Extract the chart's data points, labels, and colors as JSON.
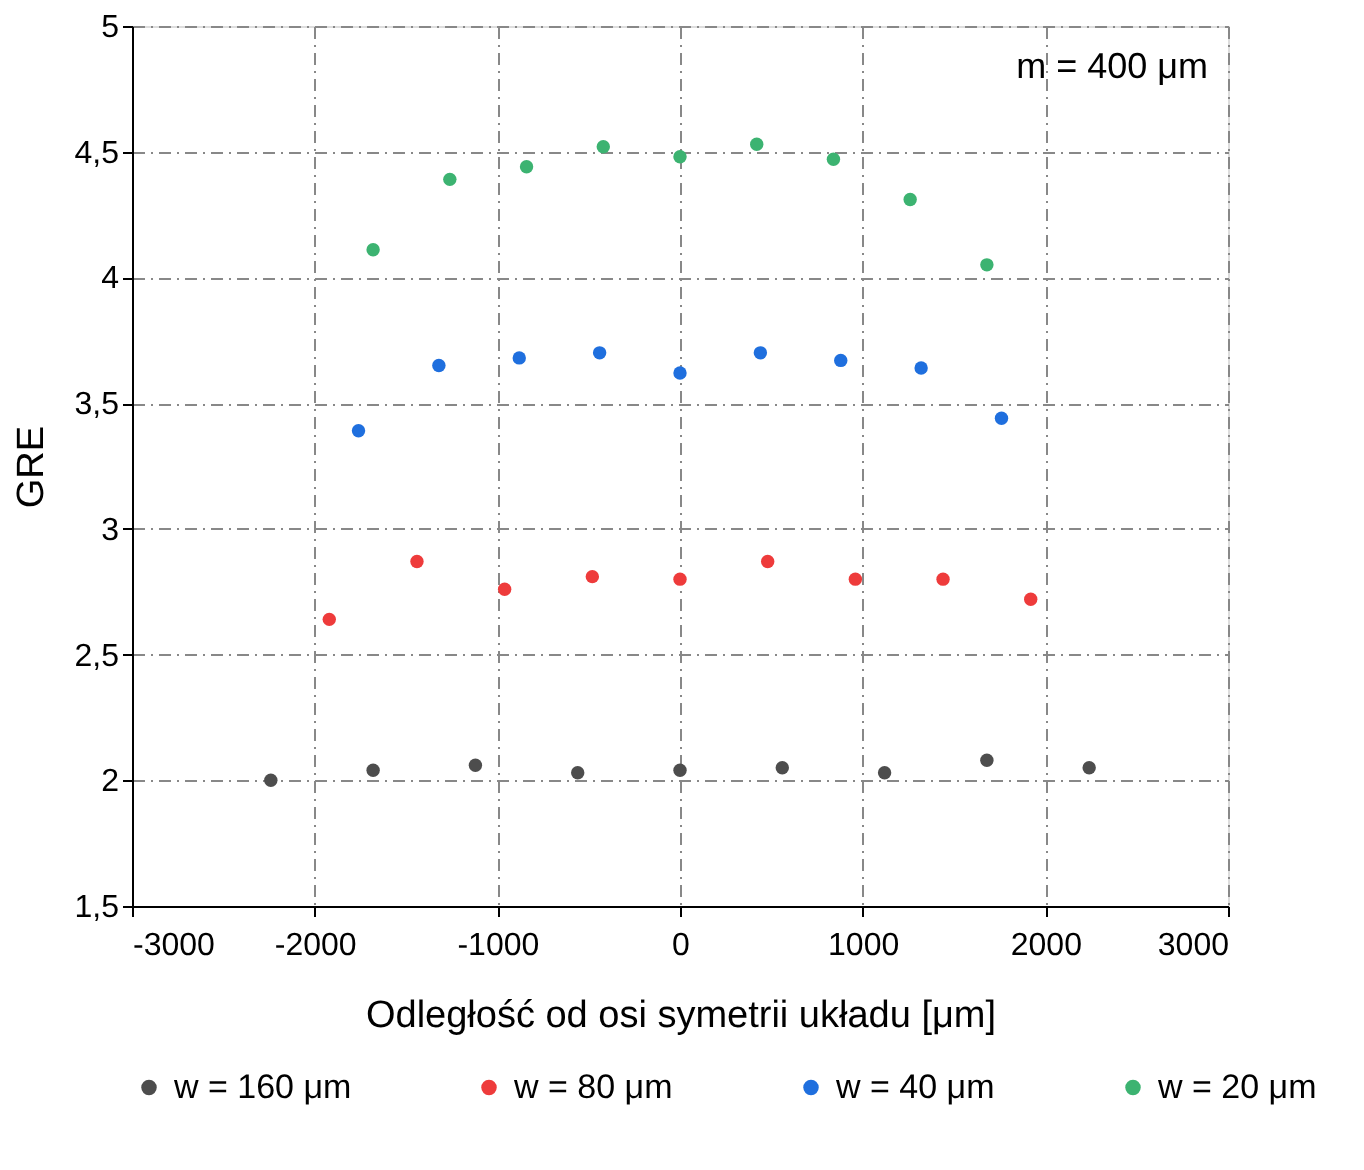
{
  "chart_data": {
    "type": "scatter",
    "xlabel": "Odległość od osi symetrii układu [μm]",
    "ylabel": "GRE",
    "annotations": [
      "m = 400 μm"
    ],
    "xlim": [
      -3000,
      3000
    ],
    "xticks": [
      -3000,
      -2000,
      -1000,
      0,
      1000,
      2000,
      3000
    ],
    "ylim": [
      1.5,
      5
    ],
    "yticks": [
      {
        "value": 1.5,
        "label": "1,5"
      },
      2,
      {
        "value": 2.5,
        "label": "2,5"
      },
      3,
      {
        "value": 3.5,
        "label": "3,5"
      },
      4,
      {
        "value": 4.5,
        "label": "4,5"
      },
      5
    ],
    "grid": true,
    "legend": "bottom",
    "marker": "circle",
    "series": [
      {
        "name": "w = 160 μm",
        "color": "#4d4d4d",
        "x": [
          -2240,
          -1680,
          -1120,
          -560,
          0,
          560,
          1120,
          1680,
          2240
        ],
        "values": [
          2.0,
          2.04,
          2.06,
          2.03,
          2.04,
          2.05,
          2.03,
          2.08,
          2.05
        ]
      },
      {
        "name": "w = 80 μm",
        "color": "#ee3b3b",
        "x": [
          -1920,
          -1440,
          -960,
          -480,
          0,
          480,
          960,
          1440,
          1920
        ],
        "values": [
          2.64,
          2.87,
          2.76,
          2.81,
          2.8,
          2.87,
          2.8,
          2.8,
          2.72
        ]
      },
      {
        "name": "w = 40 μm",
        "color": "#1f6fde",
        "x": [
          -1760,
          -1320,
          -880,
          -440,
          0,
          440,
          880,
          1320,
          1760
        ],
        "values": [
          3.39,
          3.65,
          3.68,
          3.7,
          3.62,
          3.7,
          3.67,
          3.64,
          3.44
        ]
      },
      {
        "name": "w = 20 μm",
        "color": "#3cb371",
        "x": [
          -1680,
          -1260,
          -840,
          -420,
          0,
          420,
          840,
          1260,
          1680
        ],
        "values": [
          4.11,
          4.39,
          4.44,
          4.52,
          4.48,
          4.53,
          4.47,
          4.31,
          4.05
        ]
      }
    ]
  }
}
